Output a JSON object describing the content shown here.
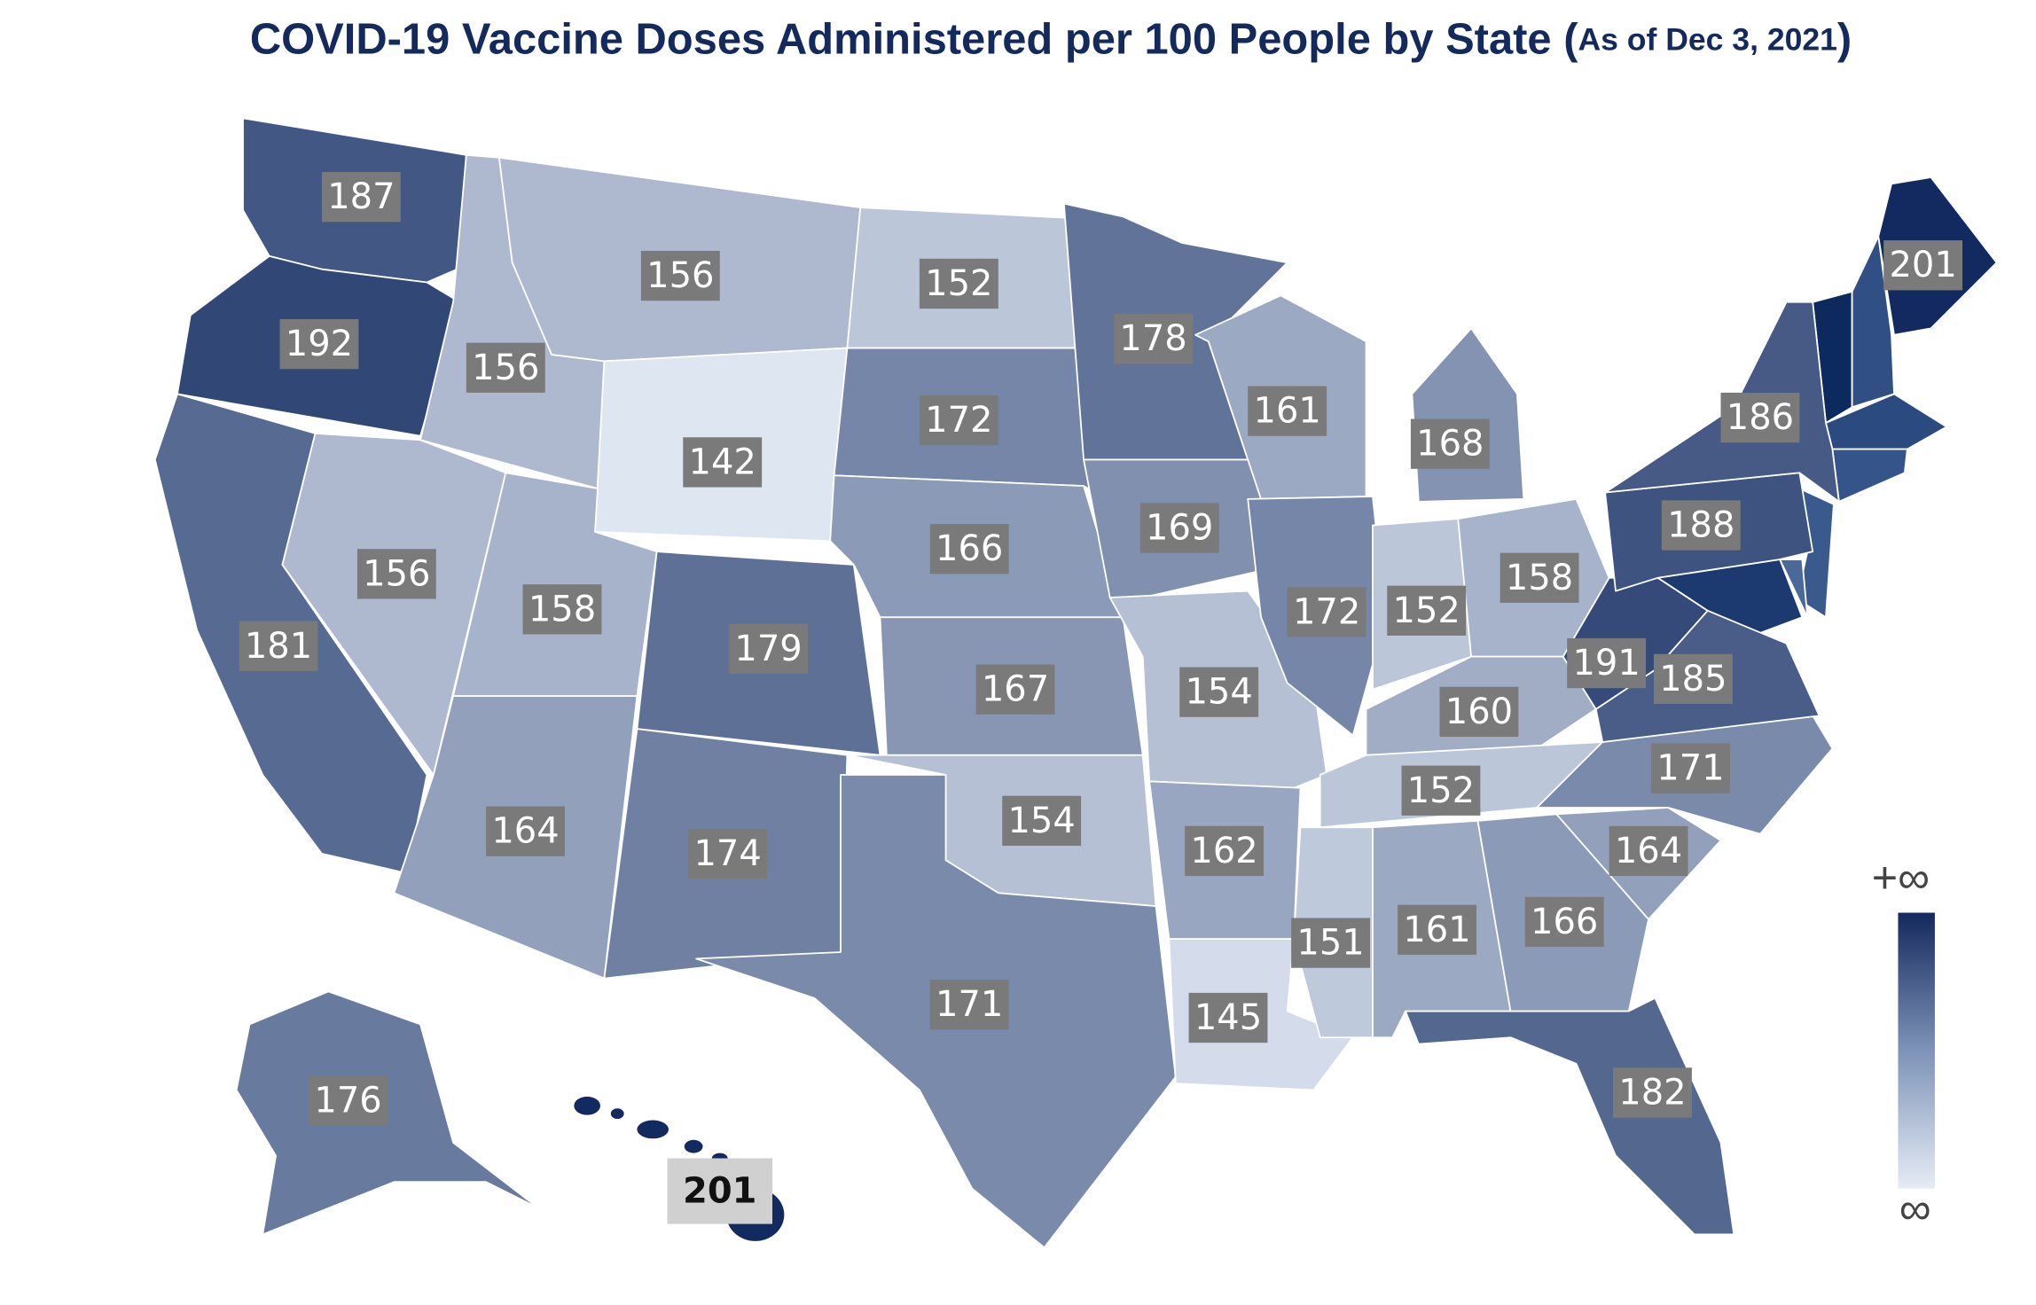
{
  "map": {
    "title": "COVID-19 Vaccine Doses Administered per 100 People by State",
    "subtitle_open": "(",
    "subtitle": "As of Dec 3, 2021",
    "subtitle_close": ")",
    "values": [
      187,
      192,
      181,
      156,
      156,
      156,
      142,
      158,
      164,
      179,
      174,
      152,
      172,
      166,
      167,
      154,
      171,
      178,
      169,
      154,
      162,
      145,
      161,
      172,
      168,
      152,
      158,
      160,
      152,
      151,
      161,
      166,
      182,
      164,
      171,
      185,
      191,
      188,
      186,
      201,
      176,
      201
    ],
    "legend": {
      "top": "+∞",
      "bottom": "∞"
    }
  }
}
